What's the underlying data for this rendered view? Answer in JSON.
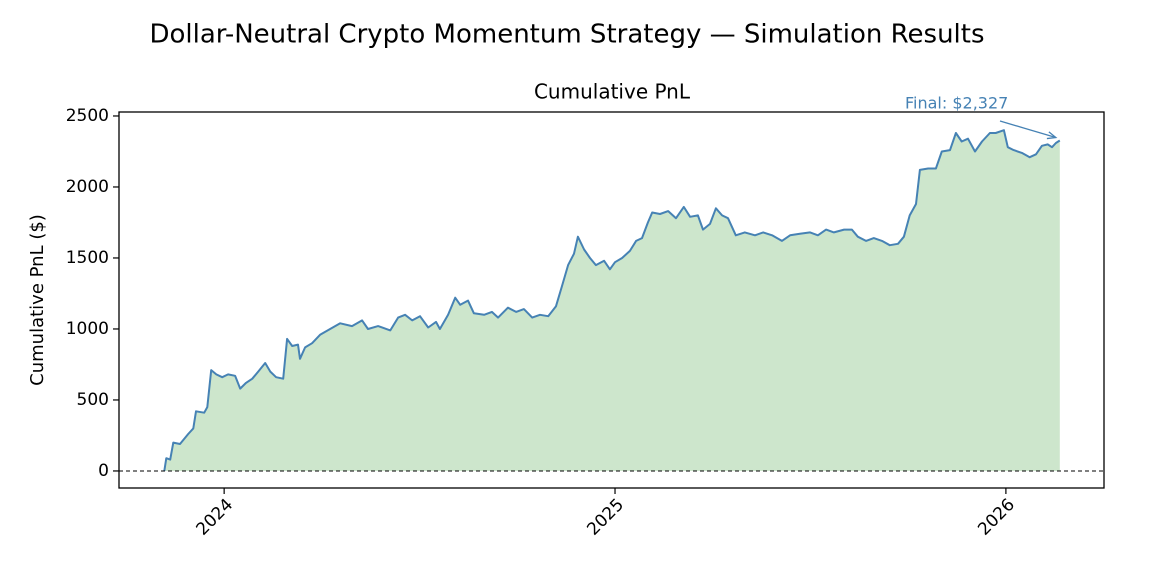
{
  "chart_data": {
    "type": "area",
    "title": "Dollar-Neutral Crypto Momentum Strategy — Simulation Results",
    "subtitle": "Cumulative PnL",
    "y_label": "Cumulative PnL ($)",
    "annotation": "Final: $2,327",
    "x": [
      2023.847,
      2023.852,
      2023.862,
      2023.87,
      2023.887,
      2023.908,
      2023.921,
      2023.928,
      2023.949,
      2023.957,
      2023.967,
      2023.98,
      2023.995,
      2024.01,
      2024.028,
      2024.041,
      2024.056,
      2024.072,
      2024.087,
      2024.105,
      2024.118,
      2024.133,
      2024.151,
      2024.161,
      2024.174,
      2024.189,
      2024.194,
      2024.207,
      2024.225,
      2024.246,
      2024.271,
      2024.297,
      2024.327,
      2024.353,
      2024.368,
      2024.394,
      2024.425,
      2024.445,
      2024.463,
      2024.481,
      2024.501,
      2024.522,
      2024.542,
      2024.552,
      2024.573,
      2024.591,
      2024.604,
      2024.624,
      2024.639,
      2024.665,
      2024.685,
      2024.701,
      2024.726,
      2024.747,
      2024.767,
      2024.788,
      2024.808,
      2024.829,
      2024.849,
      2024.864,
      2024.88,
      2024.895,
      2024.905,
      2024.921,
      2024.936,
      2024.951,
      2024.972,
      2024.987,
      2025.0,
      2025.018,
      2025.038,
      2025.054,
      2025.069,
      2025.084,
      2025.095,
      2025.115,
      2025.136,
      2025.156,
      2025.176,
      2025.192,
      2025.212,
      2025.225,
      2025.243,
      2025.258,
      2025.274,
      2025.289,
      2025.309,
      2025.332,
      2025.358,
      2025.379,
      2025.402,
      2025.427,
      2025.448,
      2025.473,
      2025.499,
      2025.519,
      2025.54,
      2025.56,
      2025.586,
      2025.606,
      2025.621,
      2025.642,
      2025.662,
      2025.683,
      2025.703,
      2025.724,
      2025.739,
      2025.754,
      2025.77,
      2025.78,
      2025.801,
      2025.821,
      2025.836,
      2025.857,
      2025.872,
      2025.887,
      2025.903,
      2025.921,
      2025.939,
      2025.959,
      2025.974,
      2025.995,
      2026.005,
      2026.02,
      2026.041,
      2026.061,
      2026.077,
      2026.092,
      2026.107,
      2026.118,
      2026.128,
      2026.138
    ],
    "series": [
      {
        "name": "Cumulative PnL",
        "color": "#4682b4",
        "fill_color": "#cde6cc",
        "values": [
          0,
          90,
          80,
          200,
          190,
          260,
          300,
          420,
          410,
          450,
          710,
          680,
          660,
          680,
          670,
          580,
          620,
          650,
          700,
          760,
          700,
          660,
          650,
          930,
          880,
          890,
          790,
          870,
          900,
          960,
          1000,
          1040,
          1020,
          1060,
          1000,
          1020,
          990,
          1080,
          1100,
          1060,
          1090,
          1010,
          1050,
          1000,
          1100,
          1220,
          1170,
          1200,
          1110,
          1100,
          1120,
          1080,
          1150,
          1120,
          1140,
          1080,
          1100,
          1090,
          1160,
          1300,
          1450,
          1530,
          1650,
          1560,
          1500,
          1450,
          1480,
          1420,
          1470,
          1500,
          1550,
          1620,
          1640,
          1750,
          1820,
          1810,
          1830,
          1780,
          1860,
          1790,
          1800,
          1700,
          1740,
          1850,
          1800,
          1780,
          1660,
          1680,
          1660,
          1680,
          1660,
          1620,
          1660,
          1670,
          1680,
          1660,
          1700,
          1680,
          1700,
          1700,
          1650,
          1620,
          1640,
          1620,
          1590,
          1600,
          1650,
          1800,
          1880,
          2120,
          2130,
          2130,
          2250,
          2260,
          2380,
          2320,
          2340,
          2250,
          2320,
          2380,
          2380,
          2400,
          2280,
          2260,
          2240,
          2210,
          2230,
          2290,
          2300,
          2280,
          2310,
          2327
        ]
      }
    ],
    "xlim": [
      2023.731,
      2026.251
    ],
    "xticks": [
      2024,
      2025,
      2026
    ],
    "ylim": [
      -120,
      2528
    ],
    "yticks": [
      0,
      500,
      1000,
      1500,
      2000,
      2500
    ],
    "hlines": [
      0
    ],
    "grid": false
  }
}
